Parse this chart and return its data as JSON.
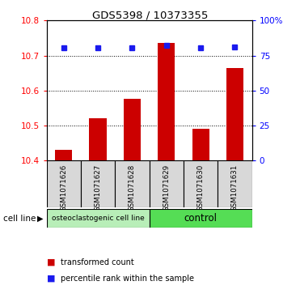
{
  "title": "GDS5398 / 10373355",
  "samples": [
    "GSM1071626",
    "GSM1071627",
    "GSM1071628",
    "GSM1071629",
    "GSM1071630",
    "GSM1071631"
  ],
  "bar_values": [
    10.43,
    10.52,
    10.575,
    10.735,
    10.49,
    10.665
  ],
  "bar_base": 10.4,
  "percentile_values": [
    10.722,
    10.722,
    10.722,
    10.729,
    10.722,
    10.725
  ],
  "ylim": [
    10.4,
    10.8
  ],
  "yticks_left": [
    10.4,
    10.5,
    10.6,
    10.7,
    10.8
  ],
  "yticks_right": [
    0,
    25,
    50,
    75,
    100
  ],
  "yticks_right_labels": [
    "0",
    "25",
    "50",
    "75",
    "100%"
  ],
  "bar_color": "#cc0000",
  "percentile_color": "#1a1aee",
  "groups": [
    {
      "label": "osteoclastogenic cell line",
      "start": 0,
      "end": 3,
      "color": "#b8eeb8"
    },
    {
      "label": "control",
      "start": 3,
      "end": 6,
      "color": "#55dd55"
    }
  ],
  "cell_line_label": "cell line",
  "legend": [
    {
      "color": "#cc0000",
      "label": "transformed count"
    },
    {
      "color": "#1a1aee",
      "label": "percentile rank within the sample"
    }
  ],
  "grid_yticks": [
    10.5,
    10.6,
    10.7
  ]
}
